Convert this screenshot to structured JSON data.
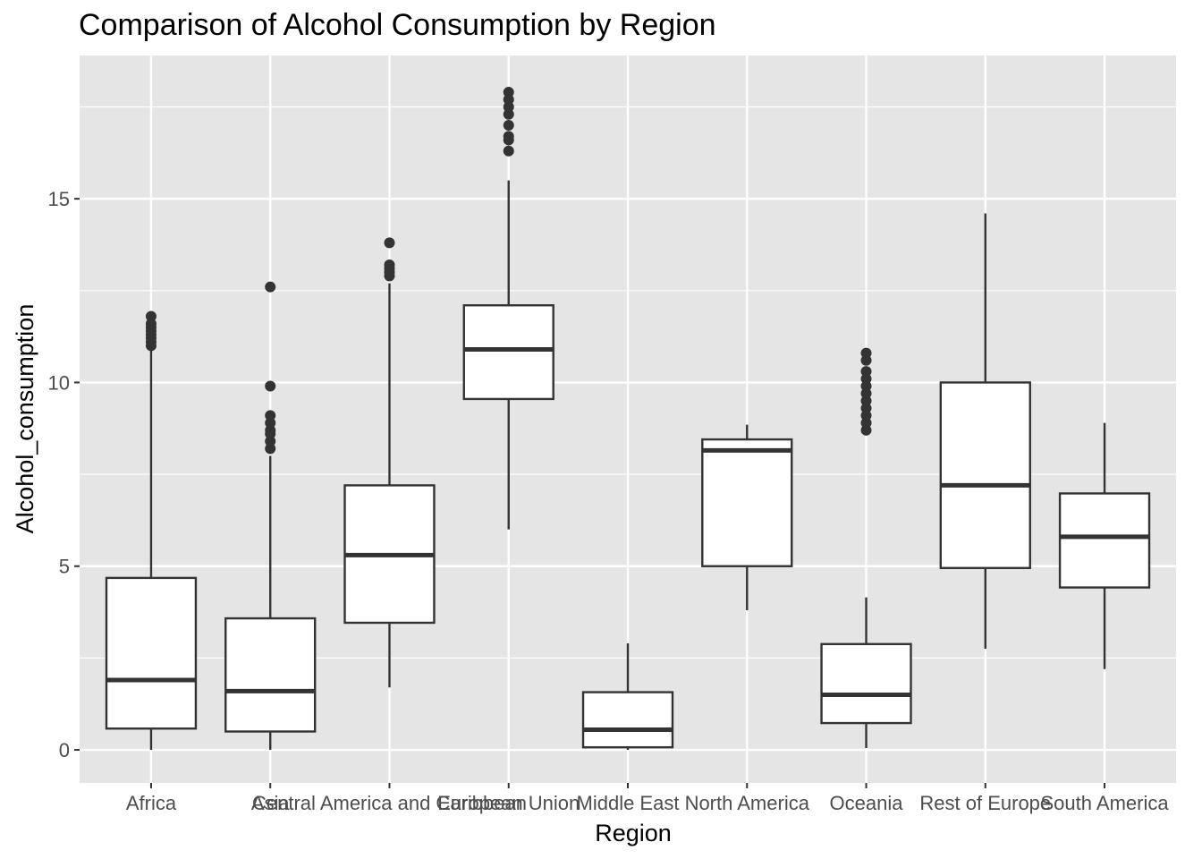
{
  "chart_data": {
    "type": "boxplot",
    "title": "Comparison of Alcohol Consumption by Region",
    "xlabel": "Region",
    "ylabel": "Alcohol_consumption",
    "ylim": [
      -0.9,
      18.9
    ],
    "yticks": [
      0,
      5,
      10,
      15
    ],
    "grid": true,
    "legend": "none",
    "categories": [
      "Africa",
      "Asia",
      "Central America and Caribbean",
      "European Union",
      "Middle East",
      "North America",
      "Oceania",
      "Rest of Europe",
      "South America"
    ],
    "boxes": [
      {
        "category": "Africa",
        "whisker_low": 0.0,
        "q1": 0.58,
        "median": 1.9,
        "q3": 4.68,
        "whisker_high": 10.9,
        "outliers": [
          11.0,
          11.1,
          11.2,
          11.3,
          11.4,
          11.5,
          11.6,
          11.8
        ]
      },
      {
        "category": "Asia",
        "whisker_low": 0.0,
        "q1": 0.5,
        "median": 1.6,
        "q3": 3.58,
        "whisker_high": 8.0,
        "outliers": [
          8.2,
          8.4,
          8.6,
          8.7,
          8.9,
          9.1,
          9.9,
          12.6
        ]
      },
      {
        "category": "Central America and Caribbean",
        "whisker_low": 1.7,
        "q1": 3.46,
        "median": 5.3,
        "q3": 7.2,
        "whisker_high": 12.7,
        "outliers": [
          12.9,
          13.0,
          13.1,
          13.2,
          13.8
        ]
      },
      {
        "category": "European Union",
        "whisker_low": 6.0,
        "q1": 9.55,
        "median": 10.9,
        "q3": 12.1,
        "whisker_high": 15.5,
        "outliers": [
          16.3,
          16.6,
          16.7,
          17.0,
          17.3,
          17.5,
          17.7,
          17.9
        ]
      },
      {
        "category": "Middle East",
        "whisker_low": 0.0,
        "q1": 0.07,
        "median": 0.55,
        "q3": 1.57,
        "whisker_high": 2.9,
        "outliers": []
      },
      {
        "category": "North America",
        "whisker_low": 3.8,
        "q1": 5.0,
        "median": 8.15,
        "q3": 8.45,
        "whisker_high": 8.85,
        "outliers": []
      },
      {
        "category": "Oceania",
        "whisker_low": 0.05,
        "q1": 0.73,
        "median": 1.5,
        "q3": 2.88,
        "whisker_high": 4.15,
        "outliers": [
          8.7,
          8.9,
          9.1,
          9.3,
          9.5,
          9.7,
          9.9,
          10.1,
          10.3,
          10.6,
          10.8
        ]
      },
      {
        "category": "Rest of Europe",
        "whisker_low": 2.75,
        "q1": 4.95,
        "median": 7.2,
        "q3": 10.0,
        "whisker_high": 14.6,
        "outliers": []
      },
      {
        "category": "South America",
        "whisker_low": 2.2,
        "q1": 4.42,
        "median": 5.8,
        "q3": 6.98,
        "whisker_high": 8.9,
        "outliers": []
      }
    ],
    "colors": {
      "panel_background": "#e5e5e5",
      "grid": "#ffffff",
      "box_fill": "#ffffff",
      "box_line": "#333333",
      "outlier": "#333333"
    }
  }
}
